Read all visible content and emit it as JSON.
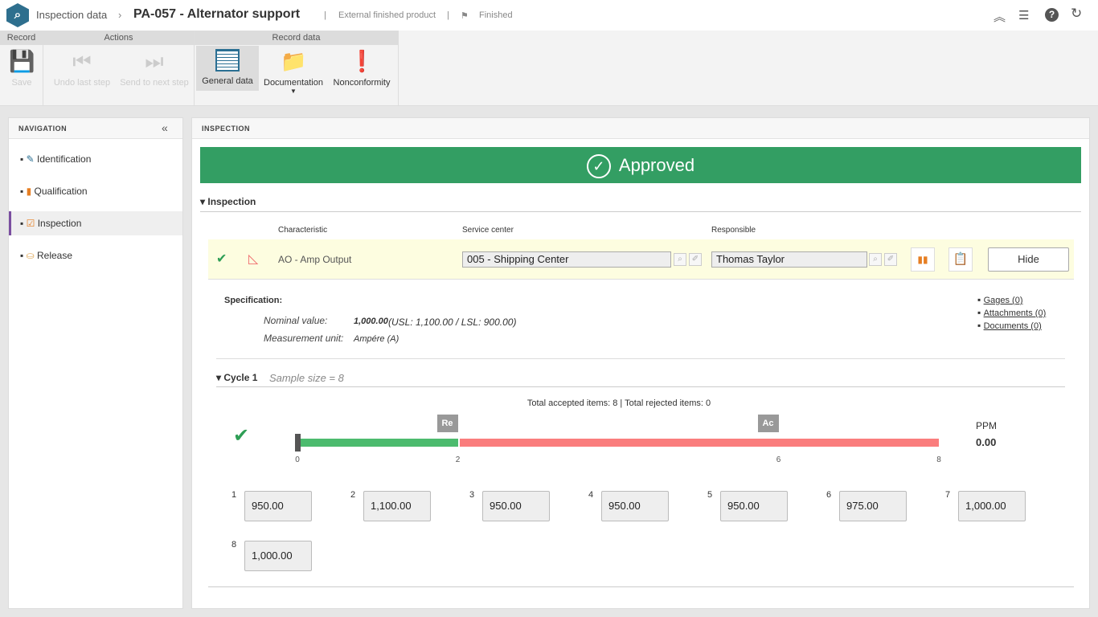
{
  "header": {
    "breadcrumb": "Inspection data",
    "separator": "›",
    "title": "PA-057 - Alternator support",
    "product_type": "External finished product",
    "status": "Finished",
    "icons": [
      "collapse-up-icon",
      "list-icon",
      "help-icon",
      "refresh-icon"
    ]
  },
  "ribbon": {
    "groups": [
      "Record",
      "Actions",
      "Record data"
    ],
    "buttons": {
      "save": "Save",
      "undo": "Undo last step",
      "send": "Send to next step",
      "general": "General data",
      "documentation": "Documentation",
      "nonconformity": "Nonconformity"
    }
  },
  "navigation": {
    "title": "NAVIGATION",
    "items": [
      {
        "label": "Identification"
      },
      {
        "label": "Qualification"
      },
      {
        "label": "Inspection",
        "selected": true
      },
      {
        "label": "Release"
      }
    ]
  },
  "inspection": {
    "title": "INSPECTION",
    "banner": "Approved",
    "banner_color": "#339e63",
    "section": "Inspection",
    "columns": {
      "characteristic": "Characteristic",
      "service_center": "Service center",
      "responsible": "Responsible"
    },
    "row": {
      "characteristic": "AO - Amp Output",
      "service_center": "005 - Shipping Center",
      "responsible": "Thomas     Taylor",
      "hide": "Hide"
    },
    "spec": {
      "label": "Specification:",
      "nominal_label": "Nominal value:",
      "nominal_value": "1,000.00",
      "limits": "(USL: 1,100.00 / LSL: 900.00)",
      "unit_label": "Measurement unit:",
      "unit_value": "Ampére (A)"
    },
    "links": [
      "Gages (0)",
      "Attachments (0)",
      "Documents (0)"
    ],
    "cycle": {
      "title": "Cycle 1",
      "sample_size": "Sample size = 8",
      "totals": "Total accepted items: 8 | Total rejected items: 0",
      "re_label": "Re",
      "ac_label": "Ac",
      "re": 2,
      "ac": 6,
      "max": 8,
      "ticks": [
        "0",
        "2",
        "6",
        "8"
      ],
      "ppm_label": "PPM",
      "ppm_value": "0.00",
      "accept_color": "#4cbb6e",
      "reject_color": "#fa7d7d"
    },
    "samples": [
      {
        "n": "1",
        "v": "950.00"
      },
      {
        "n": "2",
        "v": "1,100.00"
      },
      {
        "n": "3",
        "v": "950.00"
      },
      {
        "n": "4",
        "v": "950.00"
      },
      {
        "n": "5",
        "v": "950.00"
      },
      {
        "n": "6",
        "v": "975.00"
      },
      {
        "n": "7",
        "v": "1,000.00"
      },
      {
        "n": "8",
        "v": "1,000.00"
      }
    ]
  }
}
